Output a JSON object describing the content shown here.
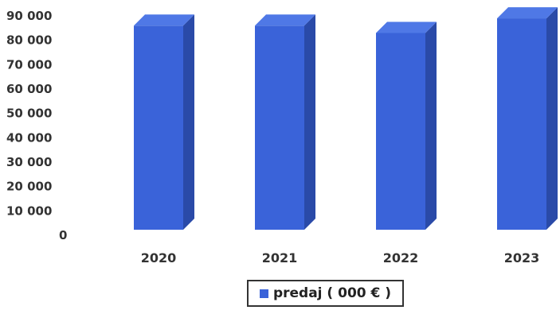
{
  "chart_data": {
    "type": "bar",
    "categories": [
      "2020",
      "2021",
      "2022",
      "2023"
    ],
    "series": [
      {
        "name": "predaj ( 000 € )",
        "values": [
          86000,
          86000,
          83000,
          89000
        ]
      }
    ],
    "y_ticks": [
      "0",
      "10 000",
      "20 000",
      "30 000",
      "40 000",
      "50 000",
      "60 000",
      "70 000",
      "80 000",
      "90 000"
    ],
    "ylim": [
      0,
      90000
    ],
    "grid": false,
    "legend_position": "bottom",
    "colors": {
      "front": "#3a63d9",
      "side": "#2a4aa8",
      "top": "#4f78e6"
    }
  }
}
